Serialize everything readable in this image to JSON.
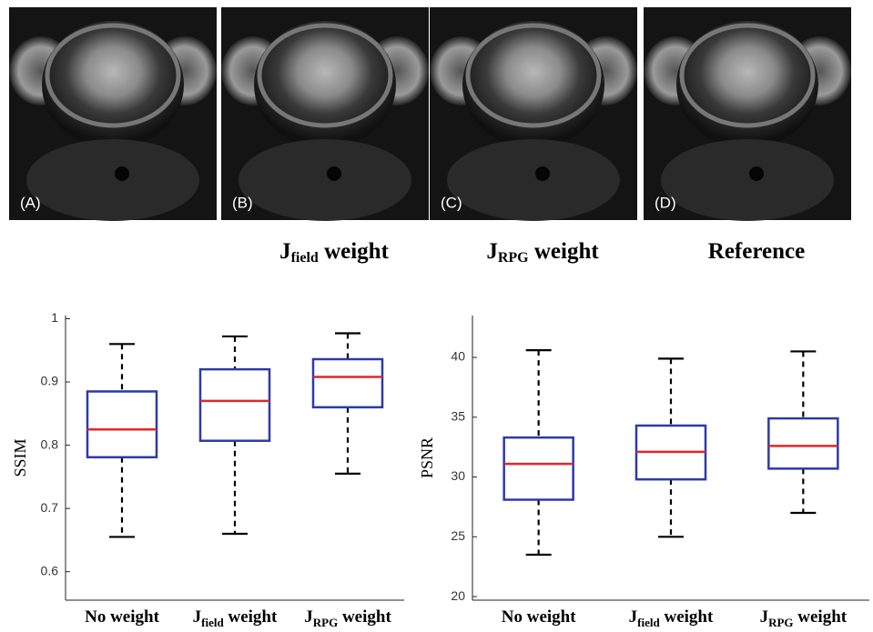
{
  "images": [
    {
      "label": "(A)"
    },
    {
      "label": "(B)",
      "caption": {
        "text": "J",
        "sub": "field",
        "rest": " weight"
      }
    },
    {
      "label": "(C)",
      "caption": {
        "text": "J",
        "sub": "RPG",
        "rest": " weight"
      }
    },
    {
      "label": "(D)",
      "caption": {
        "text": "Reference"
      }
    }
  ],
  "chart_data": [
    {
      "type": "box",
      "y_label": "SSIM",
      "categories": [
        {
          "text": "No weight"
        },
        {
          "text": "J",
          "sub": "field",
          "rest": " weight"
        },
        {
          "text": "J",
          "sub": "RPG",
          "rest": " weight"
        }
      ],
      "boxes": [
        {
          "min": 0.655,
          "q1": 0.781,
          "median": 0.825,
          "q3": 0.885,
          "max": 0.96
        },
        {
          "min": 0.66,
          "q1": 0.807,
          "median": 0.87,
          "q3": 0.92,
          "max": 0.972
        },
        {
          "min": 0.755,
          "q1": 0.86,
          "median": 0.908,
          "q3": 0.936,
          "max": 0.977
        }
      ],
      "box_color": "#2d3aa6",
      "median_color": "#e3262a",
      "whisker_color": "#000000",
      "ylim": [
        0.555,
        1.005
      ],
      "yticks": [
        0.6,
        0.7,
        0.8,
        0.9,
        1
      ]
    },
    {
      "type": "box",
      "y_label": "PSNR",
      "categories": [
        {
          "text": "No weight"
        },
        {
          "text": "J",
          "sub": "field",
          "rest": " weight"
        },
        {
          "text": "J",
          "sub": "RPG",
          "rest": " weight"
        }
      ],
      "boxes": [
        {
          "min": 23.5,
          "q1": 28.1,
          "median": 31.1,
          "q3": 33.3,
          "max": 40.6
        },
        {
          "min": 25.0,
          "q1": 29.8,
          "median": 32.1,
          "q3": 34.3,
          "max": 39.9
        },
        {
          "min": 27.0,
          "q1": 30.7,
          "median": 32.6,
          "q3": 34.9,
          "max": 40.5
        }
      ],
      "box_color": "#2d3aa6",
      "median_color": "#e3262a",
      "whisker_color": "#000000",
      "ylim": [
        19.7,
        43.5
      ],
      "yticks": [
        20,
        25,
        30,
        35,
        40
      ]
    }
  ]
}
